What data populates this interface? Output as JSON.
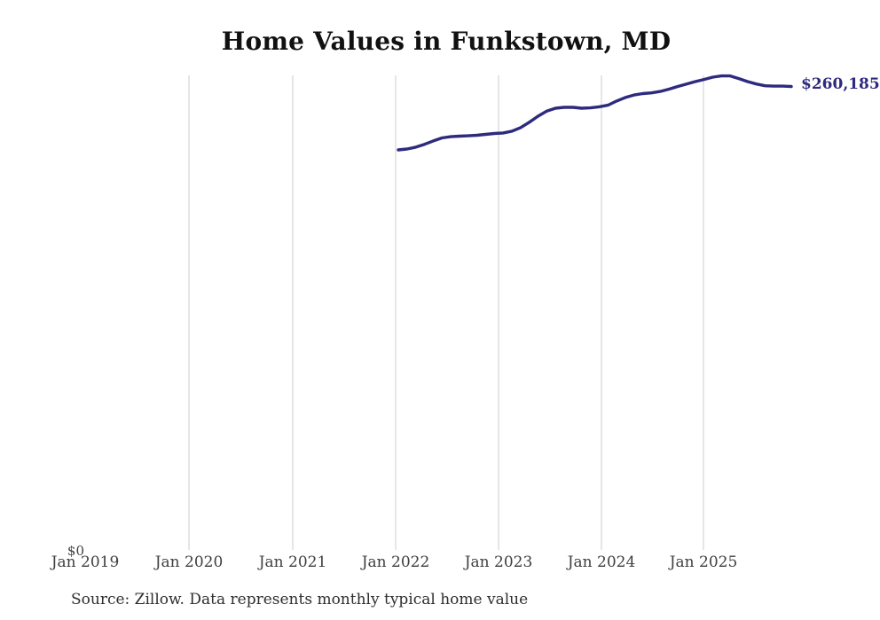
{
  "header": {
    "title": "Home Values in Funkstown, MD"
  },
  "chart_data": {
    "type": "line",
    "title": "Home Values in Funkstown, MD",
    "xlabel": "",
    "ylabel": "",
    "ylim": [
      0,
      290000
    ],
    "grid": "vertical-only",
    "grid_color": "#cccccc",
    "x_tick_labels": [
      "Jan 2019",
      "Jan 2020",
      "Jan 2021",
      "Jan 2022",
      "Jan 2023",
      "Jan 2024",
      "Jan 2025"
    ],
    "y_zero_label": "$0",
    "end_value_label": "$260,185",
    "series": [
      {
        "name": "Monthly typical home value",
        "color": "#2e2a7e",
        "x_start": "2022-01",
        "x_end": "2025-10",
        "x_step": "1 month",
        "values": [
          224600,
          225100,
          226100,
          227700,
          229600,
          231300,
          232000,
          232300,
          232500,
          232800,
          233300,
          233800,
          234100,
          235100,
          237100,
          240100,
          243500,
          246400,
          248000,
          248500,
          248500,
          248000,
          248200,
          248800,
          249700,
          252000,
          254000,
          255400,
          256200,
          256600,
          257400,
          258700,
          260200,
          261600,
          262900,
          264100,
          265400,
          266100,
          266100,
          264600,
          262900,
          261600,
          260600,
          260400,
          260400,
          260185
        ]
      }
    ],
    "annotations": [
      {
        "text": "$260,185",
        "position": "line-end-right"
      }
    ]
  },
  "footer": {
    "source": "Source: Zillow. Data represents monthly typical home value"
  }
}
